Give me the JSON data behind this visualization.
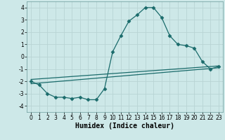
{
  "xlabel": "Humidex (Indice chaleur)",
  "bg_color": "#cde8e8",
  "grid_color": "#b8d4d4",
  "line_color": "#1a6b6b",
  "xlim": [
    -0.5,
    23.5
  ],
  "ylim": [
    -4.5,
    4.5
  ],
  "xticks": [
    0,
    1,
    2,
    3,
    4,
    5,
    6,
    7,
    8,
    9,
    10,
    11,
    12,
    13,
    14,
    15,
    16,
    17,
    18,
    19,
    20,
    21,
    22,
    23
  ],
  "yticks": [
    -4,
    -3,
    -2,
    -1,
    0,
    1,
    2,
    3,
    4
  ],
  "main_x": [
    0,
    1,
    2,
    3,
    4,
    5,
    6,
    7,
    8,
    9,
    10,
    11,
    12,
    13,
    14,
    15,
    16,
    17,
    18,
    19,
    20,
    21,
    22,
    23
  ],
  "main_y": [
    -2.0,
    -2.3,
    -3.0,
    -3.3,
    -3.3,
    -3.4,
    -3.3,
    -3.5,
    -3.5,
    -2.6,
    0.4,
    1.7,
    2.9,
    3.4,
    4.0,
    4.0,
    3.2,
    1.7,
    1.0,
    0.9,
    0.7,
    -0.4,
    -1.0,
    -0.8
  ],
  "line1_x": [
    0,
    23
  ],
  "line1_y": [
    -1.85,
    -0.75
  ],
  "line2_x": [
    0,
    23
  ],
  "line2_y": [
    -2.2,
    -0.9
  ],
  "marker": "D",
  "markersize": 2.5,
  "linewidth": 0.9,
  "xlabel_fontsize": 7,
  "tick_fontsize": 5.5
}
